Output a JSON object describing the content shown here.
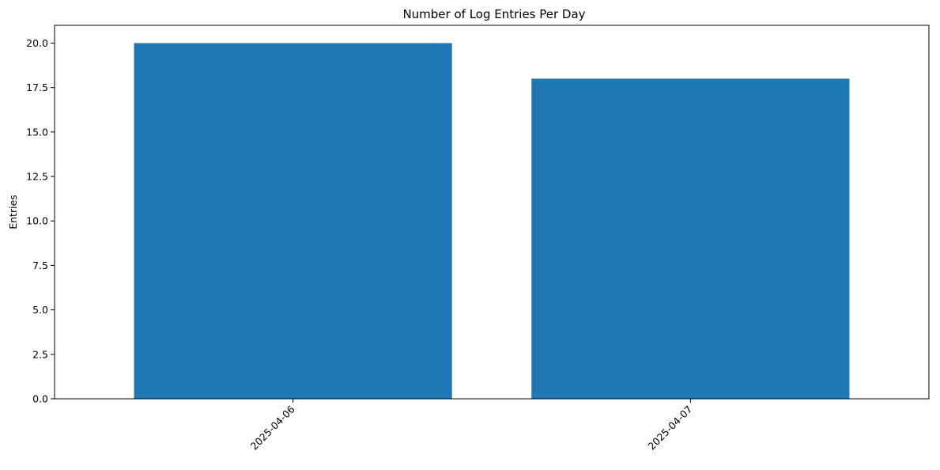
{
  "chart_data": {
    "type": "bar",
    "title": "Number of Log Entries Per Day",
    "xlabel": "",
    "ylabel": "Entries",
    "categories": [
      "2025-04-06",
      "2025-04-07"
    ],
    "values": [
      20,
      18
    ],
    "ylim": [
      0,
      21
    ],
    "yticks": [
      "0.0",
      "2.5",
      "5.0",
      "7.5",
      "10.0",
      "12.5",
      "15.0",
      "17.5",
      "20.0"
    ],
    "ytick_values": [
      0,
      2.5,
      5,
      7.5,
      10,
      12.5,
      15,
      17.5,
      20
    ],
    "bar_color": "#1f77b4",
    "grid": false,
    "legend": "none"
  }
}
